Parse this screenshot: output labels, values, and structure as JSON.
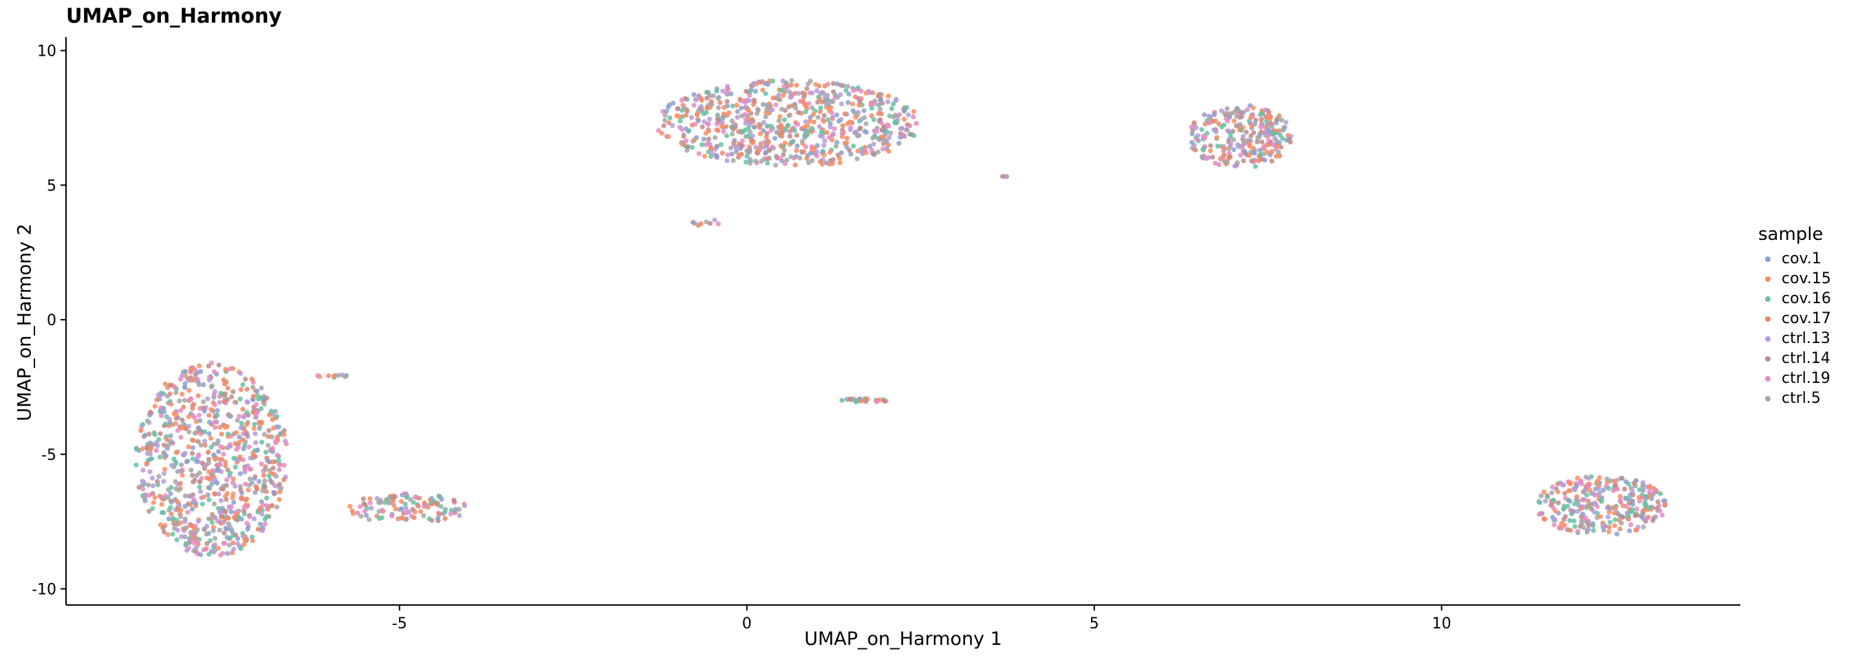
{
  "chart_data": {
    "type": "scatter",
    "title": "UMAP_on_Harmony",
    "xlabel": "UMAP_on_Harmony 1",
    "ylabel": "UMAP_on_Harmony 2",
    "xlim": [
      -9.8,
      14.3
    ],
    "ylim": [
      -10.6,
      10.5
    ],
    "xticks": [
      -5,
      0,
      5,
      10
    ],
    "yticks": [
      -10,
      -5,
      0,
      5,
      10
    ],
    "grid": false,
    "legend": {
      "title": "sample",
      "position": "right",
      "entries": [
        {
          "name": "cov.1",
          "color": "#8DA0CB"
        },
        {
          "name": "cov.15",
          "color": "#FC8D62"
        },
        {
          "name": "cov.16",
          "color": "#66C2A5"
        },
        {
          "name": "cov.17",
          "color": "#E78A6B"
        },
        {
          "name": "ctrl.13",
          "color": "#B59CD9"
        },
        {
          "name": "ctrl.14",
          "color": "#C08A8A"
        },
        {
          "name": "ctrl.19",
          "color": "#E78AC3"
        },
        {
          "name": "ctrl.5",
          "color": "#A6A6A6"
        }
      ]
    },
    "clusters": [
      {
        "cx": -7.7,
        "cy": -5.2,
        "rx": 1.1,
        "ry": 3.6,
        "n": 820
      },
      {
        "cx": 0.6,
        "cy": 7.3,
        "rx": 1.9,
        "ry": 1.6,
        "n": 700
      },
      {
        "cx": 7.1,
        "cy": 6.8,
        "rx": 0.75,
        "ry": 1.2,
        "n": 260
      },
      {
        "cx": 12.3,
        "cy": -6.9,
        "rx": 0.95,
        "ry": 1.1,
        "n": 300
      },
      {
        "cx": -4.9,
        "cy": -7.0,
        "rx": 0.9,
        "ry": 0.55,
        "n": 110
      },
      {
        "cx": 1.7,
        "cy": -3.0,
        "rx": 0.35,
        "ry": 0.08,
        "n": 25
      },
      {
        "cx": -5.9,
        "cy": -2.1,
        "rx": 0.35,
        "ry": 0.05,
        "n": 10
      },
      {
        "cx": -0.6,
        "cy": 3.6,
        "rx": 0.2,
        "ry": 0.15,
        "n": 8
      },
      {
        "cx": 3.7,
        "cy": 5.3,
        "rx": 0.05,
        "ry": 0.05,
        "n": 3
      }
    ]
  }
}
